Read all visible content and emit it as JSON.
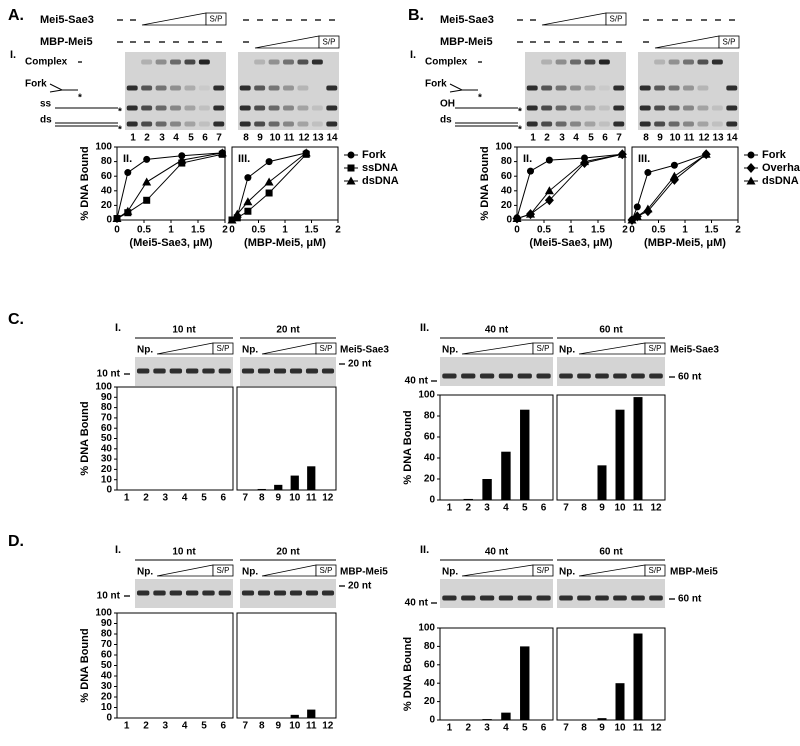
{
  "panel_a": {
    "label": "A.",
    "section": "I.",
    "proteins": [
      "Mei5-Sae3",
      "MBP-Mei5"
    ],
    "ratio": "S/P",
    "bands": [
      "Complex",
      "Fork",
      "ss",
      "ds"
    ],
    "marker": "*",
    "lanes": [
      "1",
      "2",
      "3",
      "4",
      "5",
      "6",
      "7",
      "8",
      "9",
      "10",
      "11",
      "12",
      "13",
      "14"
    ]
  },
  "panel_b": {
    "label": "B.",
    "section": "I.",
    "proteins": [
      "Mei5-Sae3",
      "MBP-Mei5"
    ],
    "ratio": "S/P",
    "bands": [
      "Complex",
      "Fork",
      "OH",
      "ds"
    ],
    "marker": "*",
    "lanes": [
      "1",
      "2",
      "3",
      "4",
      "5",
      "6",
      "7",
      "8",
      "9",
      "10",
      "11",
      "12",
      "13",
      "14"
    ]
  },
  "panel_c": {
    "label": "C.",
    "sections": [
      "I.",
      "II."
    ],
    "lengths": [
      "10 nt",
      "20 nt",
      "40 nt",
      "60 nt"
    ],
    "np": "Np.",
    "ratio": "S/P",
    "protein": "Mei5-Sae3"
  },
  "panel_d": {
    "label": "D.",
    "sections": [
      "I.",
      "II."
    ],
    "lengths": [
      "10 nt",
      "20 nt",
      "40 nt",
      "60 nt"
    ],
    "np": "Np.",
    "ratio": "S/P",
    "protein": "MBP-Mei5"
  },
  "chart_data": [
    {
      "type": "line",
      "title": "II.",
      "x_label": "(Mei5-Sae3, μM)",
      "y_label": "% DNA Bound",
      "xlim": [
        0,
        2
      ],
      "xticks": [
        0,
        0.5,
        1,
        1.5,
        2
      ],
      "ylim": [
        0,
        100
      ],
      "yticks": [
        0,
        20,
        40,
        60,
        80,
        100
      ],
      "x": [
        0,
        0.2,
        0.55,
        1.2,
        1.95
      ],
      "series": [
        {
          "color": "#000000",
          "marker": "circle",
          "values": [
            2,
            65,
            83,
            88,
            92
          ]
        },
        {
          "color": "#000000",
          "marker": "square",
          "values": [
            2,
            10,
            27,
            78,
            90
          ]
        },
        {
          "color": "#000000",
          "marker": "triangle",
          "values": [
            2,
            12,
            52,
            82,
            92
          ]
        }
      ]
    },
    {
      "type": "line",
      "title": "III.",
      "x_label": "(MBP-Mei5, μM)",
      "xlim": [
        0,
        2
      ],
      "xticks": [
        0,
        0.5,
        1,
        1.5,
        2
      ],
      "ylim": [
        0,
        100
      ],
      "x": [
        0,
        0.1,
        0.3,
        0.7,
        1.4
      ],
      "series": [
        {
          "name": "Fork",
          "color": "#000000",
          "marker": "circle",
          "values": [
            0,
            5,
            58,
            80,
            92
          ]
        },
        {
          "name": "ssDNA",
          "color": "#000000",
          "marker": "square",
          "values": [
            0,
            3,
            12,
            37,
            90
          ]
        },
        {
          "name": "dsDNA",
          "color": "#000000",
          "marker": "triangle",
          "values": [
            0,
            8,
            25,
            52,
            92
          ]
        }
      ]
    },
    {
      "type": "line",
      "title": "II.",
      "x_label": "(Mei5-Sae3, μM)",
      "y_label": "% DNA Bound",
      "xlim": [
        0,
        2
      ],
      "xticks": [
        0,
        0.5,
        1,
        1.5,
        2
      ],
      "ylim": [
        0,
        100
      ],
      "yticks": [
        0,
        20,
        40,
        60,
        80,
        100
      ],
      "x": [
        0,
        0.25,
        0.6,
        1.25,
        1.95
      ],
      "series": [
        {
          "color": "#000000",
          "marker": "circle",
          "values": [
            3,
            67,
            82,
            85,
            90
          ]
        },
        {
          "color": "#000000",
          "marker": "diamond",
          "values": [
            2,
            8,
            27,
            78,
            90
          ]
        },
        {
          "color": "#000000",
          "marker": "triangle",
          "values": [
            2,
            8,
            40,
            80,
            90
          ]
        }
      ]
    },
    {
      "type": "line",
      "title": "III.",
      "x_label": "(MBP-Mei5, μM)",
      "xlim": [
        0,
        2
      ],
      "xticks": [
        0,
        0.5,
        1,
        1.5,
        2
      ],
      "ylim": [
        0,
        100
      ],
      "x": [
        0,
        0.1,
        0.3,
        0.8,
        1.4
      ],
      "series": [
        {
          "name": "Fork",
          "color": "#000000",
          "marker": "circle",
          "values": [
            0,
            18,
            65,
            75,
            90
          ]
        },
        {
          "name": "Overhang",
          "color": "#000000",
          "marker": "diamond",
          "values": [
            0,
            5,
            12,
            55,
            90
          ]
        },
        {
          "name": "dsDNA",
          "color": "#000000",
          "marker": "triangle",
          "values": [
            0,
            5,
            15,
            60,
            90
          ]
        }
      ]
    },
    {
      "type": "bar",
      "y_label": "% DNA Bound",
      "color": "#000000",
      "categories": [
        "1",
        "2",
        "3",
        "4",
        "5",
        "6"
      ],
      "values": [
        0,
        0,
        0,
        0,
        0,
        0
      ],
      "ylim": [
        0,
        100
      ],
      "yticks": [
        0,
        10,
        20,
        30,
        40,
        50,
        60,
        70,
        80,
        90,
        100
      ]
    },
    {
      "type": "bar",
      "color": "#000000",
      "categories": [
        "7",
        "8",
        "9",
        "10",
        "11",
        "12"
      ],
      "values": [
        0,
        1,
        5,
        14,
        23,
        0
      ],
      "ylim": [
        0,
        100
      ]
    },
    {
      "type": "bar",
      "y_label": "% DNA Bound",
      "color": "#000000",
      "categories": [
        "1",
        "2",
        "3",
        "4",
        "5",
        "6"
      ],
      "values": [
        0,
        1,
        20,
        46,
        86,
        0
      ],
      "ylim": [
        0,
        100
      ],
      "yticks": [
        0,
        20,
        40,
        60,
        80,
        100
      ]
    },
    {
      "type": "bar",
      "color": "#000000",
      "categories": [
        "7",
        "8",
        "9",
        "10",
        "11",
        "12"
      ],
      "values": [
        0,
        0,
        33,
        86,
        98,
        0
      ],
      "ylim": [
        0,
        100
      ]
    },
    {
      "type": "bar",
      "y_label": "% DNA Bound",
      "color": "#000000",
      "categories": [
        "1",
        "2",
        "3",
        "4",
        "5",
        "6"
      ],
      "values": [
        0,
        0,
        0,
        0,
        0,
        0
      ],
      "ylim": [
        0,
        100
      ],
      "yticks": [
        0,
        10,
        20,
        30,
        40,
        50,
        60,
        70,
        80,
        90,
        100
      ]
    },
    {
      "type": "bar",
      "color": "#000000",
      "categories": [
        "7",
        "8",
        "9",
        "10",
        "11",
        "12"
      ],
      "values": [
        0,
        0,
        0,
        3,
        8,
        0
      ],
      "ylim": [
        0,
        100
      ]
    },
    {
      "type": "bar",
      "y_label": "% DNA Bound",
      "color": "#000000",
      "categories": [
        "1",
        "2",
        "3",
        "4",
        "5",
        "6"
      ],
      "values": [
        0,
        0,
        1,
        8,
        80,
        0
      ],
      "ylim": [
        0,
        100
      ],
      "yticks": [
        0,
        20,
        40,
        60,
        80,
        100
      ]
    },
    {
      "type": "bar",
      "color": "#000000",
      "categories": [
        "7",
        "8",
        "9",
        "10",
        "11",
        "12"
      ],
      "values": [
        0,
        0,
        2,
        40,
        94,
        0
      ],
      "ylim": [
        0,
        100
      ]
    }
  ]
}
